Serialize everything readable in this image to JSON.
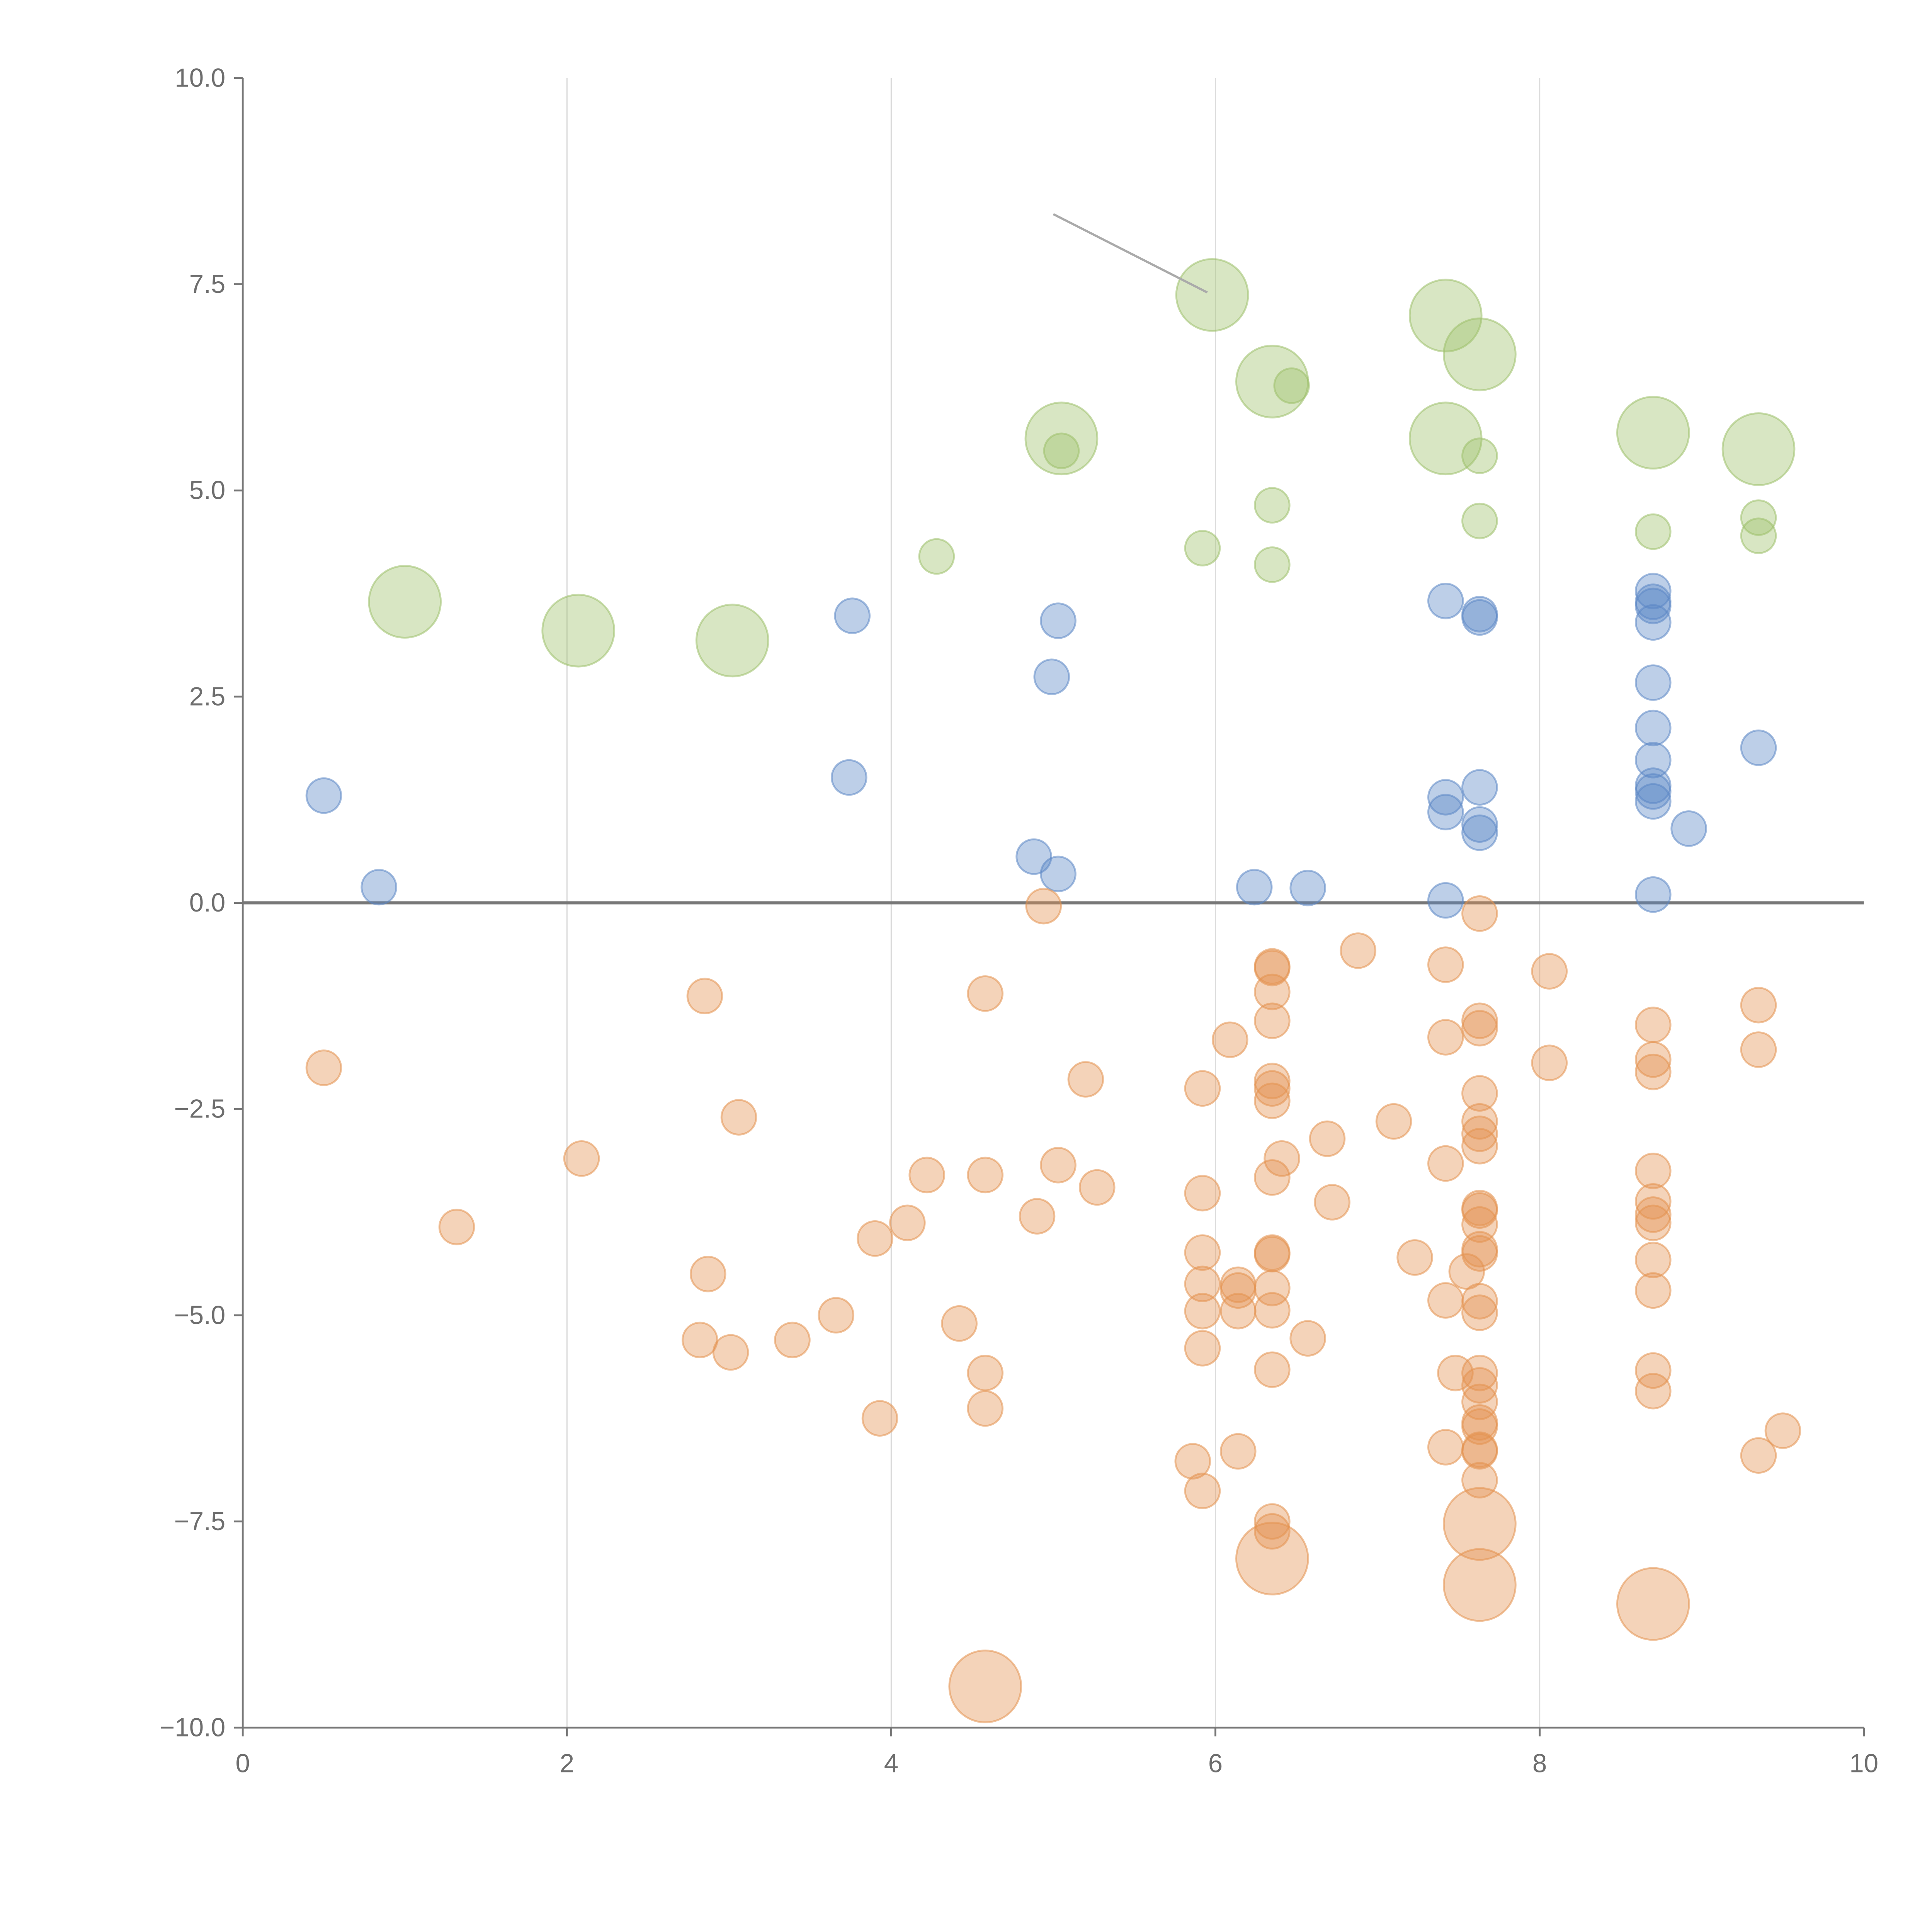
{
  "chart_data": {
    "type": "scatter",
    "title": "",
    "xlabel": "",
    "ylabel": "",
    "xlim": [
      0,
      10
    ],
    "ylim": [
      -10,
      10
    ],
    "xticks": [
      "0",
      "2",
      "4",
      "6",
      "8",
      "10"
    ],
    "xtick_values": [
      0,
      2,
      4,
      6,
      8,
      10
    ],
    "yticks": [
      "10.0",
      "7.5",
      "5.0",
      "2.5",
      "0.0",
      "−2.5",
      "−5.0",
      "−7.5",
      "−10.0"
    ],
    "ytick_values": [
      10,
      7.5,
      5,
      2.5,
      0,
      -2.5,
      -5,
      -7.5,
      -10
    ],
    "grid": "vertical",
    "reference_line_y": 0,
    "annotation_line": {
      "from": [
        5.0,
        8.35
      ],
      "to": [
        5.95,
        7.4
      ]
    },
    "point_format": [
      "x",
      "y",
      "size"
    ],
    "series": [
      {
        "name": "green",
        "color": "#9dc06a",
        "points": [
          [
            1.0,
            3.65,
            3
          ],
          [
            2.07,
            3.3,
            3
          ],
          [
            3.02,
            3.18,
            3
          ],
          [
            4.28,
            4.2,
            1
          ],
          [
            5.05,
            5.63,
            3
          ],
          [
            5.05,
            5.48,
            1
          ],
          [
            5.92,
            4.3,
            1
          ],
          [
            5.98,
            7.37,
            3
          ],
          [
            6.35,
            6.32,
            3
          ],
          [
            6.47,
            6.27,
            1
          ],
          [
            6.35,
            4.82,
            1
          ],
          [
            6.35,
            4.1,
            1
          ],
          [
            7.42,
            7.12,
            3
          ],
          [
            7.42,
            5.63,
            3
          ],
          [
            7.63,
            6.65,
            3
          ],
          [
            7.63,
            5.42,
            1
          ],
          [
            7.63,
            4.63,
            1
          ],
          [
            8.7,
            5.7,
            3
          ],
          [
            8.7,
            4.5,
            1
          ],
          [
            9.35,
            5.5,
            3
          ],
          [
            9.35,
            4.67,
            1
          ],
          [
            9.35,
            4.45,
            1
          ]
        ]
      },
      {
        "name": "blue",
        "color": "#5b87c5",
        "points": [
          [
            0.5,
            1.3,
            1
          ],
          [
            0.84,
            0.19,
            1
          ],
          [
            3.76,
            3.48,
            1
          ],
          [
            3.74,
            1.52,
            1
          ],
          [
            4.88,
            0.56,
            1
          ],
          [
            5.03,
            0.35,
            1
          ],
          [
            5.03,
            3.42,
            1
          ],
          [
            4.99,
            2.74,
            1
          ],
          [
            6.24,
            0.19,
            1
          ],
          [
            6.57,
            0.18,
            1
          ],
          [
            7.42,
            3.66,
            1
          ],
          [
            7.63,
            3.5,
            1
          ],
          [
            7.63,
            3.46,
            1
          ],
          [
            7.42,
            1.28,
            1
          ],
          [
            7.42,
            1.1,
            1
          ],
          [
            7.63,
            1.4,
            1
          ],
          [
            7.63,
            0.95,
            1
          ],
          [
            7.63,
            0.85,
            1
          ],
          [
            7.42,
            0.03,
            1
          ],
          [
            8.7,
            3.78,
            1
          ],
          [
            8.7,
            3.65,
            1
          ],
          [
            8.7,
            3.6,
            1
          ],
          [
            8.7,
            3.4,
            1
          ],
          [
            8.7,
            2.67,
            1
          ],
          [
            8.7,
            2.12,
            1
          ],
          [
            8.7,
            1.73,
            1
          ],
          [
            8.7,
            1.42,
            1
          ],
          [
            8.7,
            1.35,
            1
          ],
          [
            8.7,
            1.23,
            1
          ],
          [
            8.92,
            0.9,
            1
          ],
          [
            8.7,
            0.1,
            1
          ],
          [
            9.35,
            1.88,
            1
          ]
        ]
      },
      {
        "name": "orange",
        "color": "#e3914f",
        "points": [
          [
            0.5,
            -2.0,
            1
          ],
          [
            1.32,
            -3.93,
            1
          ],
          [
            2.09,
            -3.1,
            1
          ],
          [
            2.85,
            -1.13,
            1
          ],
          [
            3.06,
            -2.6,
            1
          ],
          [
            2.87,
            -4.5,
            1
          ],
          [
            2.82,
            -5.3,
            1
          ],
          [
            3.01,
            -5.45,
            1
          ],
          [
            3.39,
            -5.3,
            1
          ],
          [
            3.66,
            -5.0,
            1
          ],
          [
            3.9,
            -4.07,
            1
          ],
          [
            3.93,
            -6.25,
            1
          ],
          [
            4.1,
            -3.88,
            1
          ],
          [
            4.22,
            -3.3,
            1
          ],
          [
            4.42,
            -5.1,
            1
          ],
          [
            4.58,
            -1.1,
            1
          ],
          [
            4.58,
            -3.3,
            1
          ],
          [
            4.58,
            -5.7,
            1
          ],
          [
            4.58,
            -6.13,
            1
          ],
          [
            4.58,
            -9.5,
            3
          ],
          [
            4.94,
            -0.04,
            1
          ],
          [
            4.9,
            -3.8,
            1
          ],
          [
            5.03,
            -3.18,
            1
          ],
          [
            5.2,
            -2.14,
            1
          ],
          [
            5.27,
            -3.45,
            1
          ],
          [
            5.92,
            -2.25,
            1
          ],
          [
            5.92,
            -3.52,
            1
          ],
          [
            5.92,
            -4.24,
            1
          ],
          [
            5.92,
            -4.62,
            1
          ],
          [
            5.92,
            -4.95,
            1
          ],
          [
            5.92,
            -5.4,
            1
          ],
          [
            5.86,
            -6.77,
            1
          ],
          [
            5.92,
            -7.13,
            1
          ],
          [
            6.09,
            -1.66,
            1
          ],
          [
            6.14,
            -4.63,
            1
          ],
          [
            6.14,
            -4.7,
            1
          ],
          [
            6.14,
            -4.95,
            1
          ],
          [
            6.14,
            -6.65,
            1
          ],
          [
            6.35,
            -0.77,
            1
          ],
          [
            6.35,
            -0.79,
            1
          ],
          [
            6.35,
            -1.08,
            1
          ],
          [
            6.35,
            -1.43,
            1
          ],
          [
            6.35,
            -2.16,
            1
          ],
          [
            6.35,
            -2.25,
            1
          ],
          [
            6.35,
            -2.4,
            1
          ],
          [
            6.35,
            -3.33,
            1
          ],
          [
            6.41,
            -3.1,
            1
          ],
          [
            6.35,
            -4.24,
            1
          ],
          [
            6.35,
            -4.26,
            1
          ],
          [
            6.35,
            -4.67,
            1
          ],
          [
            6.35,
            -4.94,
            1
          ],
          [
            6.35,
            -5.66,
            1
          ],
          [
            6.35,
            -7.5,
            1
          ],
          [
            6.35,
            -7.62,
            1
          ],
          [
            6.35,
            -7.95,
            3
          ],
          [
            6.57,
            -5.28,
            1
          ],
          [
            6.69,
            -2.86,
            1
          ],
          [
            6.72,
            -3.63,
            1
          ],
          [
            6.88,
            -0.58,
            1
          ],
          [
            7.1,
            -2.65,
            1
          ],
          [
            7.23,
            -4.3,
            1
          ],
          [
            7.42,
            -0.75,
            1
          ],
          [
            7.42,
            -1.63,
            1
          ],
          [
            7.42,
            -3.16,
            1
          ],
          [
            7.42,
            -4.82,
            1
          ],
          [
            7.42,
            -6.6,
            1
          ],
          [
            7.48,
            -5.7,
            1
          ],
          [
            7.55,
            -4.47,
            1
          ],
          [
            7.63,
            -0.13,
            1
          ],
          [
            7.63,
            -1.43,
            1
          ],
          [
            7.63,
            -1.52,
            1
          ],
          [
            7.63,
            -2.31,
            1
          ],
          [
            7.63,
            -2.65,
            1
          ],
          [
            7.63,
            -2.8,
            1
          ],
          [
            7.63,
            -2.95,
            1
          ],
          [
            7.63,
            -3.7,
            1
          ],
          [
            7.63,
            -3.73,
            1
          ],
          [
            7.63,
            -3.9,
            1
          ],
          [
            7.63,
            -4.2,
            1
          ],
          [
            7.63,
            -4.25,
            1
          ],
          [
            7.63,
            -4.83,
            1
          ],
          [
            7.63,
            -4.97,
            1
          ],
          [
            7.63,
            -5.7,
            1
          ],
          [
            7.63,
            -5.85,
            1
          ],
          [
            7.63,
            -6.05,
            1
          ],
          [
            7.63,
            -6.3,
            1
          ],
          [
            7.63,
            -6.35,
            1
          ],
          [
            7.63,
            -6.63,
            1
          ],
          [
            7.63,
            -6.65,
            1
          ],
          [
            7.63,
            -7.0,
            1
          ],
          [
            7.63,
            -7.53,
            3
          ],
          [
            7.63,
            -8.27,
            3
          ],
          [
            8.06,
            -0.83,
            1
          ],
          [
            8.06,
            -1.94,
            1
          ],
          [
            8.7,
            -1.48,
            1
          ],
          [
            8.7,
            -1.9,
            1
          ],
          [
            8.7,
            -2.05,
            1
          ],
          [
            8.7,
            -3.25,
            1
          ],
          [
            8.7,
            -3.62,
            1
          ],
          [
            8.7,
            -3.78,
            1
          ],
          [
            8.7,
            -3.88,
            1
          ],
          [
            8.7,
            -4.33,
            1
          ],
          [
            8.7,
            -4.7,
            1
          ],
          [
            8.7,
            -5.67,
            1
          ],
          [
            8.7,
            -5.92,
            1
          ],
          [
            8.7,
            -8.5,
            3
          ],
          [
            9.35,
            -1.24,
            1
          ],
          [
            9.35,
            -1.78,
            1
          ],
          [
            9.35,
            -6.7,
            1
          ],
          [
            9.5,
            -6.4,
            1
          ]
        ]
      }
    ]
  }
}
